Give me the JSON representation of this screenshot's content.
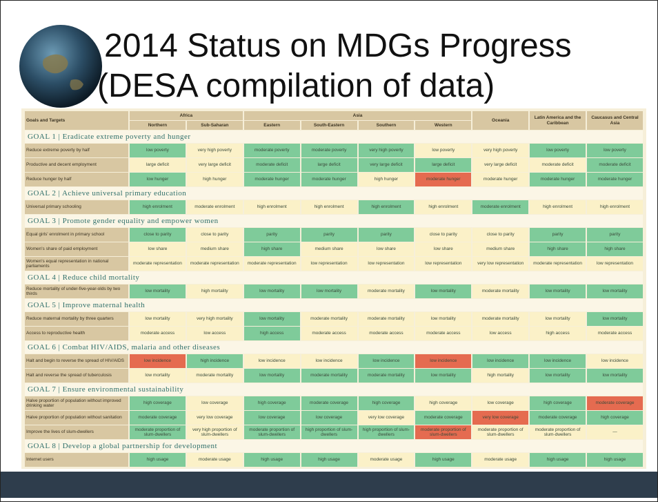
{
  "title": {
    "line1": "2014 Status on MDGs Progress",
    "line2": "(DESA compilation of data)"
  },
  "table": {
    "corner": "Goals and Targets",
    "regions": [
      {
        "name": "Africa",
        "subregions": [
          "Northern",
          "Sub-Saharan"
        ]
      },
      {
        "name": "Asia",
        "subregions": [
          "Eastern",
          "South-Eastern",
          "Southern",
          "Western"
        ]
      },
      {
        "name": "Oceania",
        "subregions": []
      },
      {
        "name": "Latin America and the Caribbean",
        "subregions": []
      },
      {
        "name": "Caucasus and Central Asia",
        "subregions": []
      }
    ],
    "goals": [
      {
        "heading": "GOAL 1 | Eradicate extreme poverty and hunger",
        "rows": [
          {
            "target": "Reduce extreme poverty by half",
            "cells": [
              {
                "text": "low poverty",
                "color": "#7fcb9a"
              },
              {
                "text": "very high poverty",
                "color": "#fbf1c8"
              },
              {
                "text": "moderate poverty",
                "color": "#7fcb9a"
              },
              {
                "text": "moderate poverty",
                "color": "#7fcb9a"
              },
              {
                "text": "very high poverty",
                "color": "#7fcb9a"
              },
              {
                "text": "low poverty",
                "color": "#fbf1c8"
              },
              {
                "text": "very high poverty",
                "color": "#fbf1c8"
              },
              {
                "text": "low poverty",
                "color": "#7fcb9a"
              },
              {
                "text": "low poverty",
                "color": "#7fcb9a"
              }
            ]
          },
          {
            "target": "Productive and decent employment",
            "cells": [
              {
                "text": "large deficit",
                "color": "#fbf1c8"
              },
              {
                "text": "very large deficit",
                "color": "#fbf1c8"
              },
              {
                "text": "moderate deficit",
                "color": "#7fcb9a"
              },
              {
                "text": "large deficit",
                "color": "#7fcb9a"
              },
              {
                "text": "very large deficit",
                "color": "#7fcb9a"
              },
              {
                "text": "large deficit",
                "color": "#7fcb9a"
              },
              {
                "text": "very large deficit",
                "color": "#fbf1c8"
              },
              {
                "text": "moderate deficit",
                "color": "#fbf1c8"
              },
              {
                "text": "moderate deficit",
                "color": "#7fcb9a"
              }
            ]
          },
          {
            "target": "Reduce hunger by half",
            "cells": [
              {
                "text": "low hunger",
                "color": "#7fcb9a"
              },
              {
                "text": "high hunger",
                "color": "#fbf1c8"
              },
              {
                "text": "moderate hunger",
                "color": "#7fcb9a"
              },
              {
                "text": "moderate hunger",
                "color": "#7fcb9a"
              },
              {
                "text": "high hunger",
                "color": "#fbf1c8"
              },
              {
                "text": "moderate hunger",
                "color": "#e56b50"
              },
              {
                "text": "moderate hunger",
                "color": "#fbf1c8"
              },
              {
                "text": "moderate hunger",
                "color": "#7fcb9a"
              },
              {
                "text": "moderate hunger",
                "color": "#7fcb9a"
              }
            ]
          }
        ]
      },
      {
        "heading": "GOAL 2 | Achieve universal primary education",
        "rows": [
          {
            "target": "Universal primary schooling",
            "cells": [
              {
                "text": "high enrolment",
                "color": "#7fcb9a"
              },
              {
                "text": "moderate enrolment",
                "color": "#fbf1c8"
              },
              {
                "text": "high enrolment",
                "color": "#fbf1c8"
              },
              {
                "text": "high enrolment",
                "color": "#fbf1c8"
              },
              {
                "text": "high enrolment",
                "color": "#7fcb9a"
              },
              {
                "text": "high enrolment",
                "color": "#fbf1c8"
              },
              {
                "text": "moderate enrolment",
                "color": "#7fcb9a"
              },
              {
                "text": "high enrolment",
                "color": "#fbf1c8"
              },
              {
                "text": "high enrolment",
                "color": "#fbf1c8"
              }
            ]
          }
        ]
      },
      {
        "heading": "GOAL 3 | Promote gender equality and empower women",
        "rows": [
          {
            "target": "Equal girls' enrolment in primary school",
            "cells": [
              {
                "text": "close to parity",
                "color": "#7fcb9a"
              },
              {
                "text": "close to parity",
                "color": "#fbf1c8"
              },
              {
                "text": "parity",
                "color": "#7fcb9a"
              },
              {
                "text": "parity",
                "color": "#7fcb9a"
              },
              {
                "text": "parity",
                "color": "#7fcb9a"
              },
              {
                "text": "close to parity",
                "color": "#fbf1c8"
              },
              {
                "text": "close to parity",
                "color": "#fbf1c8"
              },
              {
                "text": "parity",
                "color": "#7fcb9a"
              },
              {
                "text": "parity",
                "color": "#7fcb9a"
              }
            ]
          },
          {
            "target": "Women's share of paid employment",
            "cells": [
              {
                "text": "low share",
                "color": "#fbf1c8"
              },
              {
                "text": "medium share",
                "color": "#fbf1c8"
              },
              {
                "text": "high share",
                "color": "#7fcb9a"
              },
              {
                "text": "medium share",
                "color": "#fbf1c8"
              },
              {
                "text": "low share",
                "color": "#fbf1c8"
              },
              {
                "text": "low share",
                "color": "#fbf1c8"
              },
              {
                "text": "medium share",
                "color": "#fbf1c8"
              },
              {
                "text": "high share",
                "color": "#7fcb9a"
              },
              {
                "text": "high share",
                "color": "#7fcb9a"
              }
            ]
          },
          {
            "target": "Women's equal representation in national parliaments",
            "cells": [
              {
                "text": "moderate representation",
                "color": "#fbf1c8"
              },
              {
                "text": "moderate representation",
                "color": "#fbf1c8"
              },
              {
                "text": "moderate representation",
                "color": "#fbf1c8"
              },
              {
                "text": "low representation",
                "color": "#fbf1c8"
              },
              {
                "text": "low representation",
                "color": "#fbf1c8"
              },
              {
                "text": "low representation",
                "color": "#fbf1c8"
              },
              {
                "text": "very low representation",
                "color": "#fbf1c8"
              },
              {
                "text": "moderate representation",
                "color": "#fbf1c8"
              },
              {
                "text": "low representation",
                "color": "#fbf1c8"
              }
            ]
          }
        ]
      },
      {
        "heading": "GOAL 4 | Reduce child mortality",
        "rows": [
          {
            "target": "Reduce mortality of under-five-year-olds by two thirds",
            "cells": [
              {
                "text": "low mortality",
                "color": "#7fcb9a"
              },
              {
                "text": "high mortality",
                "color": "#fbf1c8"
              },
              {
                "text": "low mortality",
                "color": "#7fcb9a"
              },
              {
                "text": "low mortality",
                "color": "#7fcb9a"
              },
              {
                "text": "moderate mortality",
                "color": "#fbf1c8"
              },
              {
                "text": "low mortality",
                "color": "#7fcb9a"
              },
              {
                "text": "moderate mortality",
                "color": "#fbf1c8"
              },
              {
                "text": "low mortality",
                "color": "#7fcb9a"
              },
              {
                "text": "low mortality",
                "color": "#7fcb9a"
              }
            ]
          }
        ]
      },
      {
        "heading": "GOAL 5 | Improve maternal health",
        "rows": [
          {
            "target": "Reduce maternal mortality by three quarters",
            "cells": [
              {
                "text": "low mortality",
                "color": "#fbf1c8"
              },
              {
                "text": "very high mortality",
                "color": "#fbf1c8"
              },
              {
                "text": "low mortality",
                "color": "#7fcb9a"
              },
              {
                "text": "moderate mortality",
                "color": "#fbf1c8"
              },
              {
                "text": "moderate mortality",
                "color": "#fbf1c8"
              },
              {
                "text": "low mortality",
                "color": "#fbf1c8"
              },
              {
                "text": "moderate mortality",
                "color": "#fbf1c8"
              },
              {
                "text": "low mortality",
                "color": "#fbf1c8"
              },
              {
                "text": "low mortality",
                "color": "#7fcb9a"
              }
            ]
          },
          {
            "target": "Access to reproductive health",
            "cells": [
              {
                "text": "moderate access",
                "color": "#fbf1c8"
              },
              {
                "text": "low access",
                "color": "#fbf1c8"
              },
              {
                "text": "high access",
                "color": "#7fcb9a"
              },
              {
                "text": "moderate access",
                "color": "#fbf1c8"
              },
              {
                "text": "moderate access",
                "color": "#fbf1c8"
              },
              {
                "text": "moderate access",
                "color": "#fbf1c8"
              },
              {
                "text": "low access",
                "color": "#fbf1c8"
              },
              {
                "text": "high access",
                "color": "#fbf1c8"
              },
              {
                "text": "moderate access",
                "color": "#fbf1c8"
              }
            ]
          }
        ]
      },
      {
        "heading": "GOAL 6 | Combat HIV/AIDS, malaria and other diseases",
        "rows": [
          {
            "target": "Halt and begin to reverse the spread of HIV/AIDS",
            "cells": [
              {
                "text": "low incidence",
                "color": "#e56b50"
              },
              {
                "text": "high incidence",
                "color": "#7fcb9a"
              },
              {
                "text": "low incidence",
                "color": "#fbf1c8"
              },
              {
                "text": "low incidence",
                "color": "#fbf1c8"
              },
              {
                "text": "low incidence",
                "color": "#7fcb9a"
              },
              {
                "text": "low incidence",
                "color": "#e56b50"
              },
              {
                "text": "low incidence",
                "color": "#7fcb9a"
              },
              {
                "text": "low incidence",
                "color": "#7fcb9a"
              },
              {
                "text": "low incidence",
                "color": "#fbf1c8"
              }
            ]
          },
          {
            "target": "Halt and reverse the spread of tuberculosis",
            "cells": [
              {
                "text": "low mortality",
                "color": "#fbf1c8"
              },
              {
                "text": "moderate mortality",
                "color": "#fbf1c8"
              },
              {
                "text": "low mortality",
                "color": "#7fcb9a"
              },
              {
                "text": "moderate mortality",
                "color": "#7fcb9a"
              },
              {
                "text": "moderate mortality",
                "color": "#7fcb9a"
              },
              {
                "text": "low mortality",
                "color": "#7fcb9a"
              },
              {
                "text": "high mortality",
                "color": "#fbf1c8"
              },
              {
                "text": "low mortality",
                "color": "#7fcb9a"
              },
              {
                "text": "low mortality",
                "color": "#7fcb9a"
              }
            ]
          }
        ]
      },
      {
        "heading": "GOAL 7 | Ensure environmental sustainability",
        "rows": [
          {
            "target": "Halve proportion of population without improved drinking water",
            "cells": [
              {
                "text": "high coverage",
                "color": "#7fcb9a"
              },
              {
                "text": "low coverage",
                "color": "#fbf1c8"
              },
              {
                "text": "high coverage",
                "color": "#7fcb9a"
              },
              {
                "text": "moderate coverage",
                "color": "#7fcb9a"
              },
              {
                "text": "high coverage",
                "color": "#7fcb9a"
              },
              {
                "text": "high coverage",
                "color": "#fbf1c8"
              },
              {
                "text": "low coverage",
                "color": "#fbf1c8"
              },
              {
                "text": "high coverage",
                "color": "#7fcb9a"
              },
              {
                "text": "moderate coverage",
                "color": "#e56b50"
              }
            ]
          },
          {
            "target": "Halve proportion of population without sanitation",
            "cells": [
              {
                "text": "moderate coverage",
                "color": "#7fcb9a"
              },
              {
                "text": "very low coverage",
                "color": "#fbf1c8"
              },
              {
                "text": "low coverage",
                "color": "#7fcb9a"
              },
              {
                "text": "low coverage",
                "color": "#7fcb9a"
              },
              {
                "text": "very low coverage",
                "color": "#fbf1c8"
              },
              {
                "text": "moderate coverage",
                "color": "#7fcb9a"
              },
              {
                "text": "very low coverage",
                "color": "#e56b50"
              },
              {
                "text": "moderate coverage",
                "color": "#7fcb9a"
              },
              {
                "text": "high coverage",
                "color": "#7fcb9a"
              }
            ]
          },
          {
            "target": "Improve the lives of slum-dwellers",
            "cells": [
              {
                "text": "moderate proportion of slum-dwellers",
                "color": "#7fcb9a"
              },
              {
                "text": "very high proportion of slum-dwellers",
                "color": "#fbf1c8"
              },
              {
                "text": "moderate proportion of slum-dwellers",
                "color": "#7fcb9a"
              },
              {
                "text": "high proportion of slum-dwellers",
                "color": "#7fcb9a"
              },
              {
                "text": "high proportion of slum-dwellers",
                "color": "#7fcb9a"
              },
              {
                "text": "moderate proportion of slum-dwellers",
                "color": "#e56b50"
              },
              {
                "text": "moderate proportion of slum-dwellers",
                "color": "#fbf1c8"
              },
              {
                "text": "moderate proportion of slum-dwellers",
                "color": "#fbf1c8"
              },
              {
                "text": "—",
                "color": "#fbf1c8"
              }
            ]
          }
        ]
      },
      {
        "heading": "GOAL 8 | Develop a global partnership for development",
        "rows": [
          {
            "target": "Internet users",
            "cells": [
              {
                "text": "high usage",
                "color": "#7fcb9a"
              },
              {
                "text": "moderate usage",
                "color": "#fbf1c8"
              },
              {
                "text": "high usage",
                "color": "#7fcb9a"
              },
              {
                "text": "high usage",
                "color": "#7fcb9a"
              },
              {
                "text": "moderate usage",
                "color": "#fbf1c8"
              },
              {
                "text": "high usage",
                "color": "#7fcb9a"
              },
              {
                "text": "moderate usage",
                "color": "#fbf1c8"
              },
              {
                "text": "high usage",
                "color": "#7fcb9a"
              },
              {
                "text": "high usage",
                "color": "#7fcb9a"
              }
            ]
          }
        ]
      }
    ]
  }
}
